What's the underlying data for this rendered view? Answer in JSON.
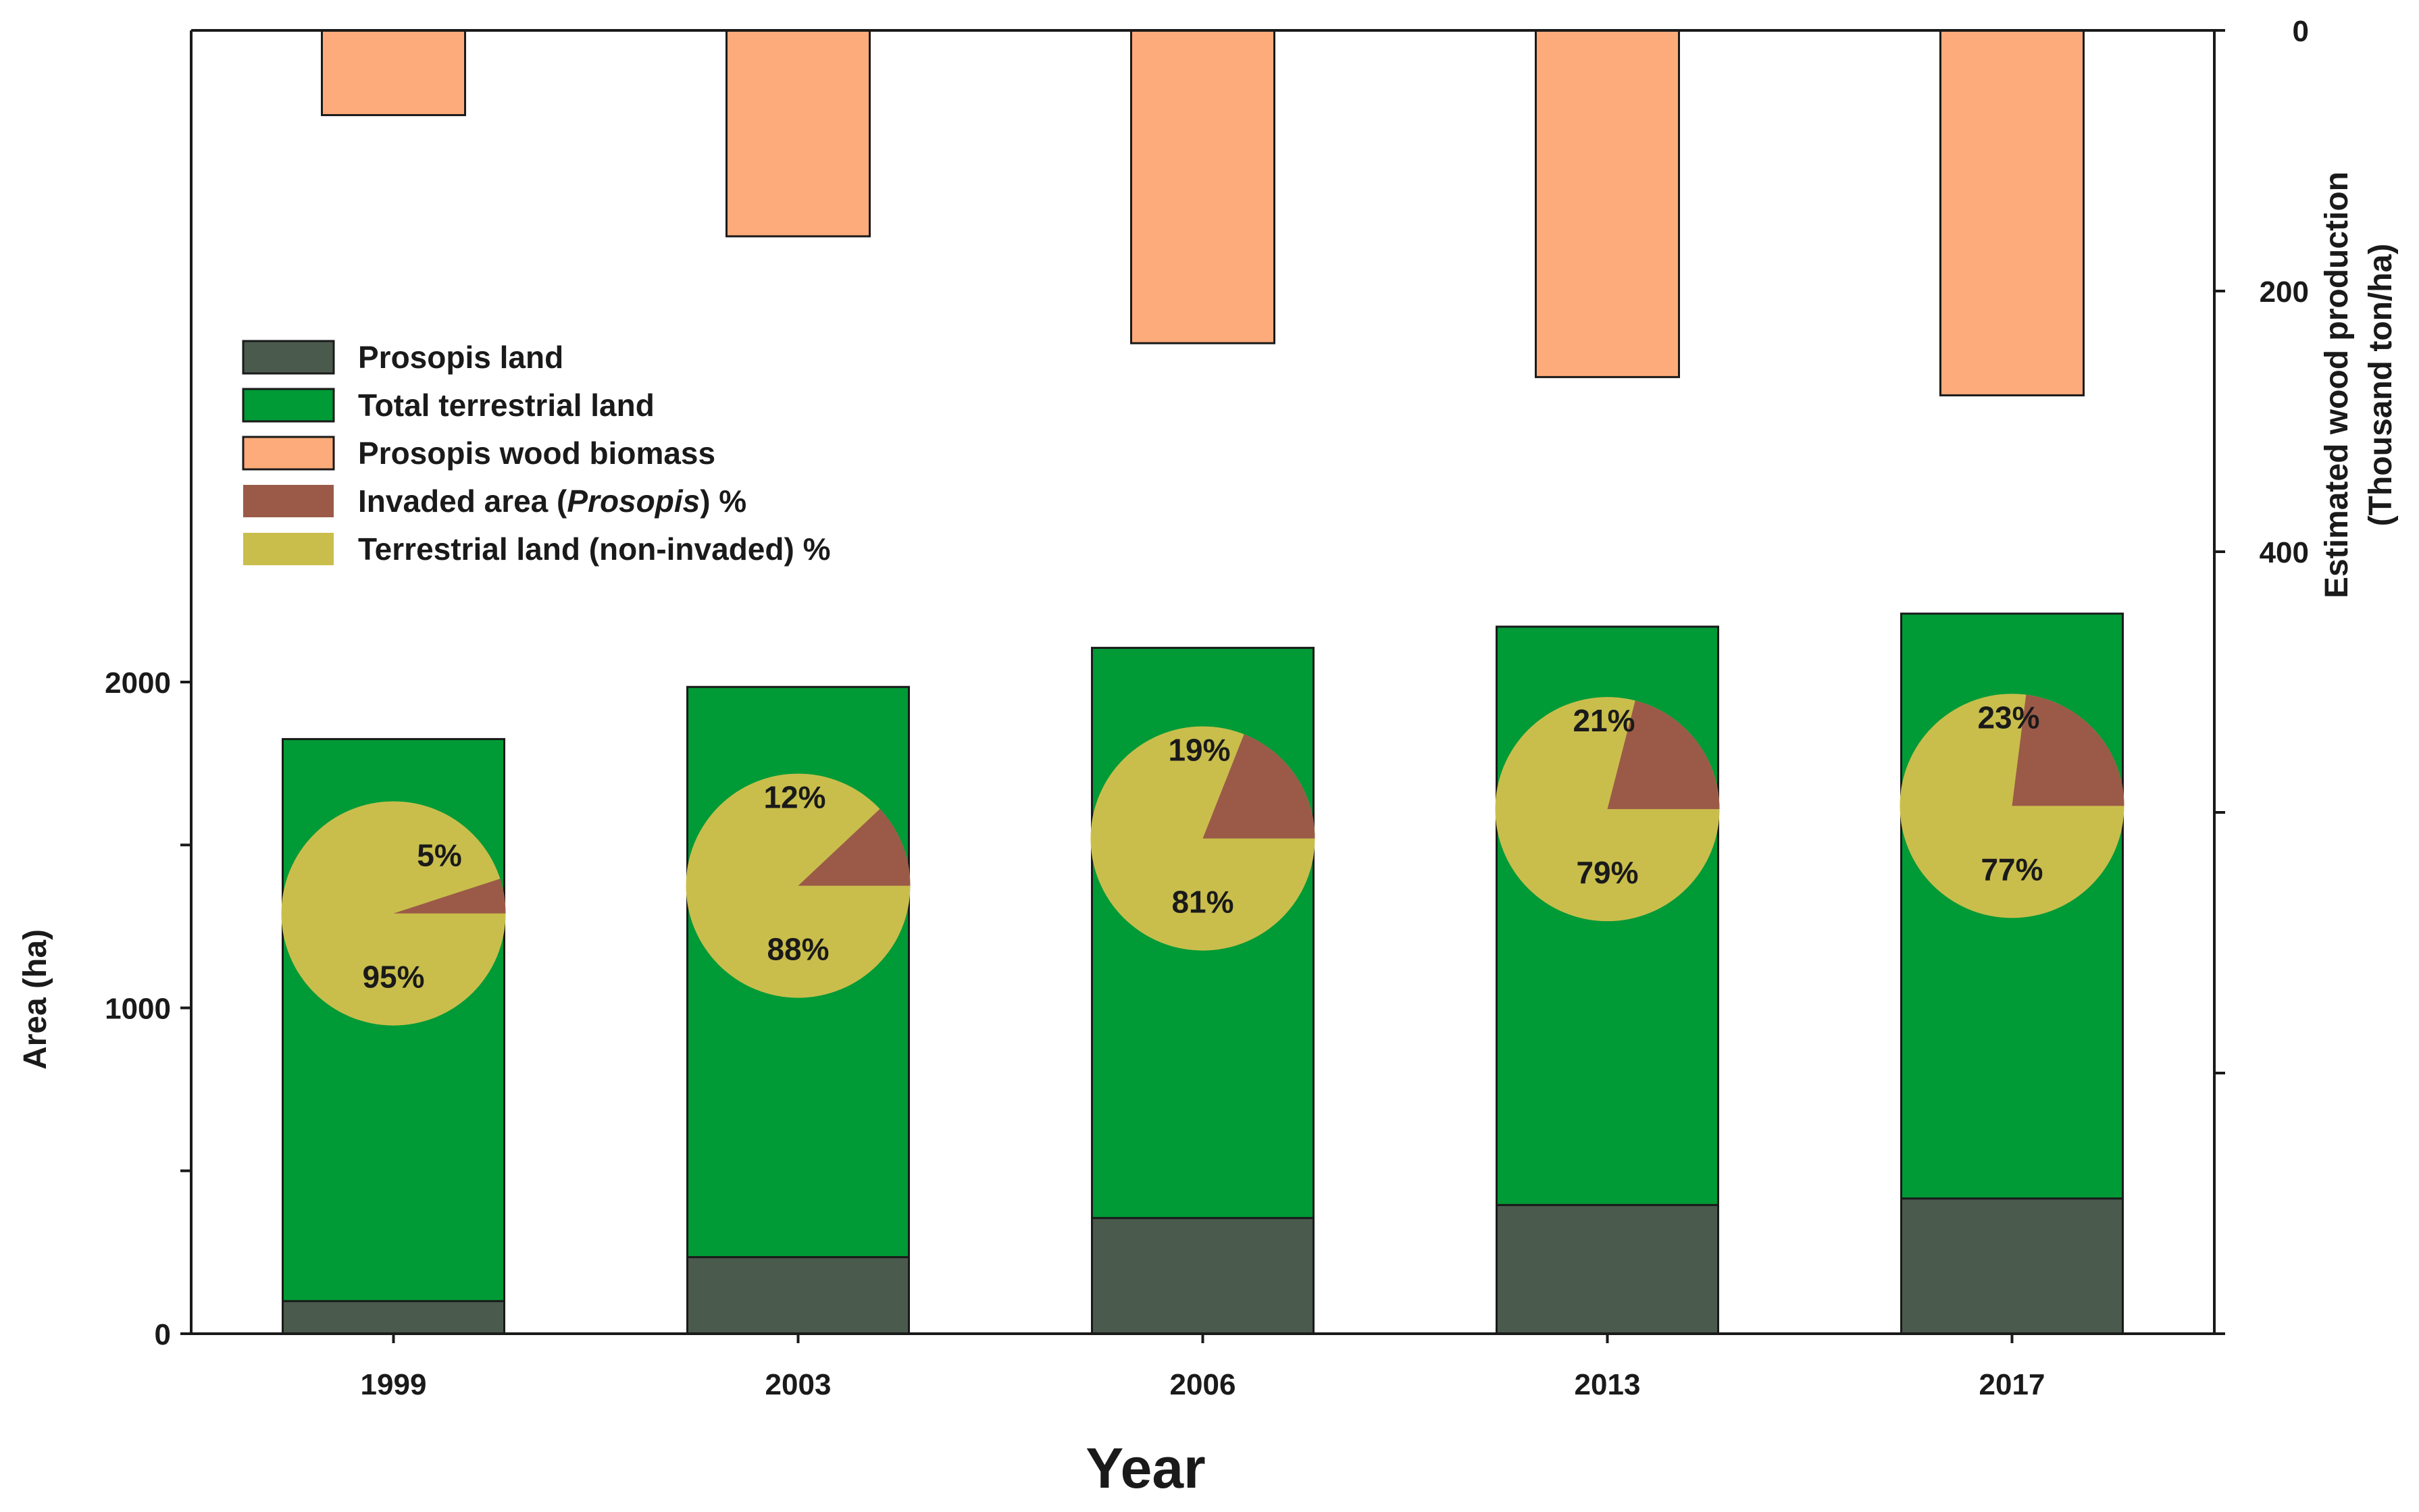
{
  "chart_data": {
    "type": "bar",
    "categories": [
      "1999",
      "2003",
      "2006",
      "2013",
      "2017"
    ],
    "xlabel": "Year",
    "ylabel": "Area (ha)",
    "y2label_line1": "Estimated wood production",
    "y2label_line2": "(Thousand ton/ha)",
    "ylim": [
      0,
      4000
    ],
    "y_ticks": [
      0,
      1000,
      2000
    ],
    "y2lim": [
      0,
      1000
    ],
    "y2_ticks": [
      0,
      200,
      400
    ],
    "y2_inverted": true,
    "series": [
      {
        "name": "Prosopis land",
        "values": [
          100,
          235,
          355,
          395,
          415
        ],
        "color": "#4a5a4c",
        "axis": "left"
      },
      {
        "name": "Total terrestrial land",
        "values": [
          1825,
          1985,
          2105,
          2170,
          2210
        ],
        "color": "#009a36",
        "axis": "left"
      },
      {
        "name": "Prosopis wood biomass",
        "values": [
          65,
          158,
          240,
          266,
          280
        ],
        "color": "#fdab7a",
        "axis": "right"
      }
    ],
    "pies": [
      {
        "category": "1999",
        "center_area": 1290,
        "invaded_pct": 5,
        "non_invaded_pct": 95,
        "invaded_label": "5%",
        "non_invaded_label": "95%"
      },
      {
        "category": "2003",
        "center_area": 1375,
        "invaded_pct": 12,
        "non_invaded_pct": 88,
        "invaded_label": "12%",
        "non_invaded_label": "88%"
      },
      {
        "category": "2006",
        "center_area": 1520,
        "invaded_pct": 19,
        "non_invaded_pct": 81,
        "invaded_label": "19%",
        "non_invaded_label": "81%"
      },
      {
        "category": "2013",
        "center_area": 1610,
        "invaded_pct": 21,
        "non_invaded_pct": 79,
        "invaded_label": "21%",
        "non_invaded_label": "79%"
      },
      {
        "category": "2017",
        "center_area": 1620,
        "invaded_pct": 23,
        "non_invaded_pct": 77,
        "invaded_label": "23%",
        "non_invaded_label": "77%"
      }
    ],
    "pie_colors": {
      "invaded": "#9b5a48",
      "non_invaded": "#c9be4c"
    },
    "legend": {
      "position": "upper-left",
      "items": [
        {
          "label": "Prosopis land",
          "color": "#4a5a4c"
        },
        {
          "label": "Total terrestrial land",
          "color": "#009a36"
        },
        {
          "label": "Prosopis wood biomass",
          "color": "#fdab7a"
        },
        {
          "label_prefix": "Invaded area (",
          "label_italic": "Prosopis",
          "label_suffix": ") %",
          "color": "#9b5a48"
        },
        {
          "label": " Terrestrial land (non-invaded) %",
          "color": "#c9be4c"
        }
      ]
    }
  }
}
